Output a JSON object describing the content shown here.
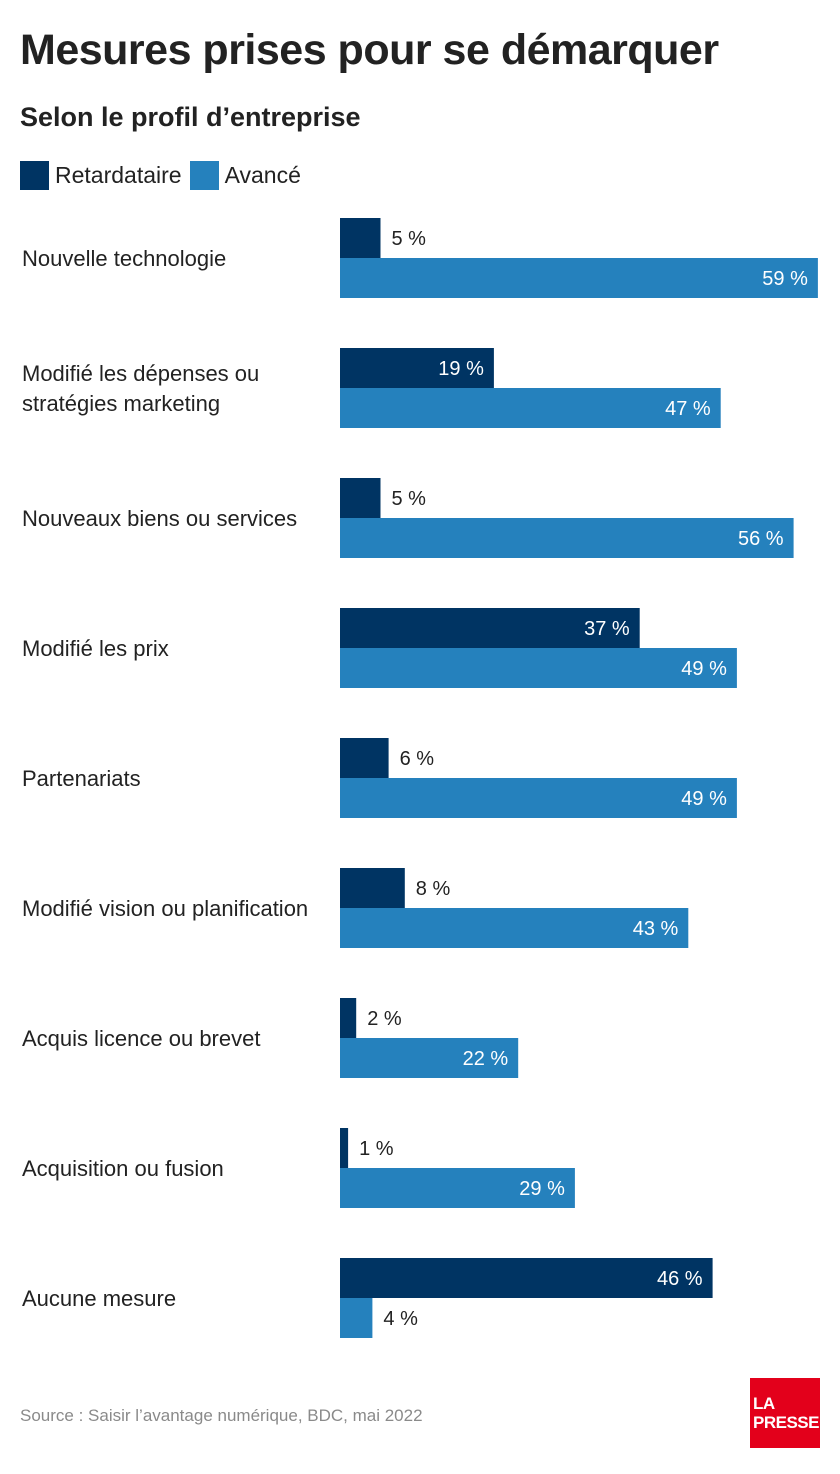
{
  "colors": {
    "retardataire": "#003463",
    "avance": "#2581bd",
    "logo": "#e3001b"
  },
  "chart_data": {
    "type": "bar",
    "orientation": "horizontal",
    "title": "Mesures prises pour se démarquer",
    "subtitle": "Selon le profil d’entreprise",
    "categories": [
      [
        "Nouvelle technologie"
      ],
      [
        "Modifié les dépenses ou",
        "stratégies marketing"
      ],
      [
        "Nouveaux biens ou services"
      ],
      [
        "Modifié les prix"
      ],
      [
        "Partenariats"
      ],
      [
        "Modifié vision ou planification"
      ],
      [
        "Acquis licence ou brevet"
      ],
      [
        "Acquisition ou fusion"
      ],
      [
        "Aucune mesure"
      ]
    ],
    "series": [
      {
        "name": "Retardataire",
        "color": "#003463",
        "values": [
          5,
          19,
          5,
          37,
          6,
          8,
          2,
          1,
          46
        ]
      },
      {
        "name": "Avancé",
        "color": "#2581bd",
        "values": [
          59,
          47,
          56,
          49,
          49,
          43,
          22,
          29,
          4
        ]
      }
    ],
    "value_suffix": " %",
    "legend": "top-left",
    "grid": false
  },
  "source": "Source : Saisir l’avantage numérique, BDC, mai 2022",
  "logo": {
    "line1": "LA",
    "line2": "PRESSE"
  }
}
